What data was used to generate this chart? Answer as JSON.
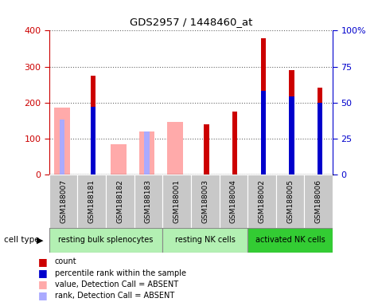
{
  "title": "GDS2957 / 1448460_at",
  "samples": [
    "GSM188007",
    "GSM188181",
    "GSM188182",
    "GSM188183",
    "GSM188001",
    "GSM188003",
    "GSM188004",
    "GSM188002",
    "GSM188005",
    "GSM188006"
  ],
  "count": [
    null,
    275,
    null,
    null,
    null,
    140,
    175,
    378,
    290,
    242
  ],
  "percentile_rank_val": [
    null,
    190,
    null,
    null,
    null,
    null,
    null,
    232,
    218,
    202
  ],
  "percentile_rank_pct": [
    null,
    47,
    null,
    null,
    null,
    null,
    null,
    58,
    54,
    50
  ],
  "value_absent": [
    185,
    null,
    83,
    120,
    145,
    null,
    null,
    null,
    null,
    null
  ],
  "rank_absent_val": [
    153,
    null,
    null,
    122,
    null,
    null,
    null,
    null,
    null,
    null
  ],
  "rank_absent_pct": [
    38,
    null,
    null,
    30,
    null,
    null,
    null,
    null,
    null,
    null
  ],
  "cell_types": [
    {
      "label": "resting bulk splenocytes",
      "start": 0,
      "end": 4,
      "color": "#b3f0b3"
    },
    {
      "label": "resting NK cells",
      "start": 4,
      "end": 7,
      "color": "#b3f0b3"
    },
    {
      "label": "activated NK cells",
      "start": 7,
      "end": 10,
      "color": "#33cc33"
    }
  ],
  "ylim_left": [
    0,
    400
  ],
  "ylim_right": [
    0,
    100
  ],
  "yticks_left": [
    0,
    100,
    200,
    300,
    400
  ],
  "yticks_right": [
    0,
    25,
    50,
    75,
    100
  ],
  "ytick_labels_right": [
    "0",
    "25",
    "50",
    "75",
    "100%"
  ],
  "colors": {
    "count": "#cc0000",
    "percentile_rank": "#0000cc",
    "value_absent": "#ffaaaa",
    "rank_absent": "#aaaaff"
  },
  "plot_bg": "#ffffff",
  "fig_bg": "#ffffff",
  "grid_color": "#000000",
  "sample_box_color": "#c8c8c8",
  "cell_type_border": "#888888"
}
